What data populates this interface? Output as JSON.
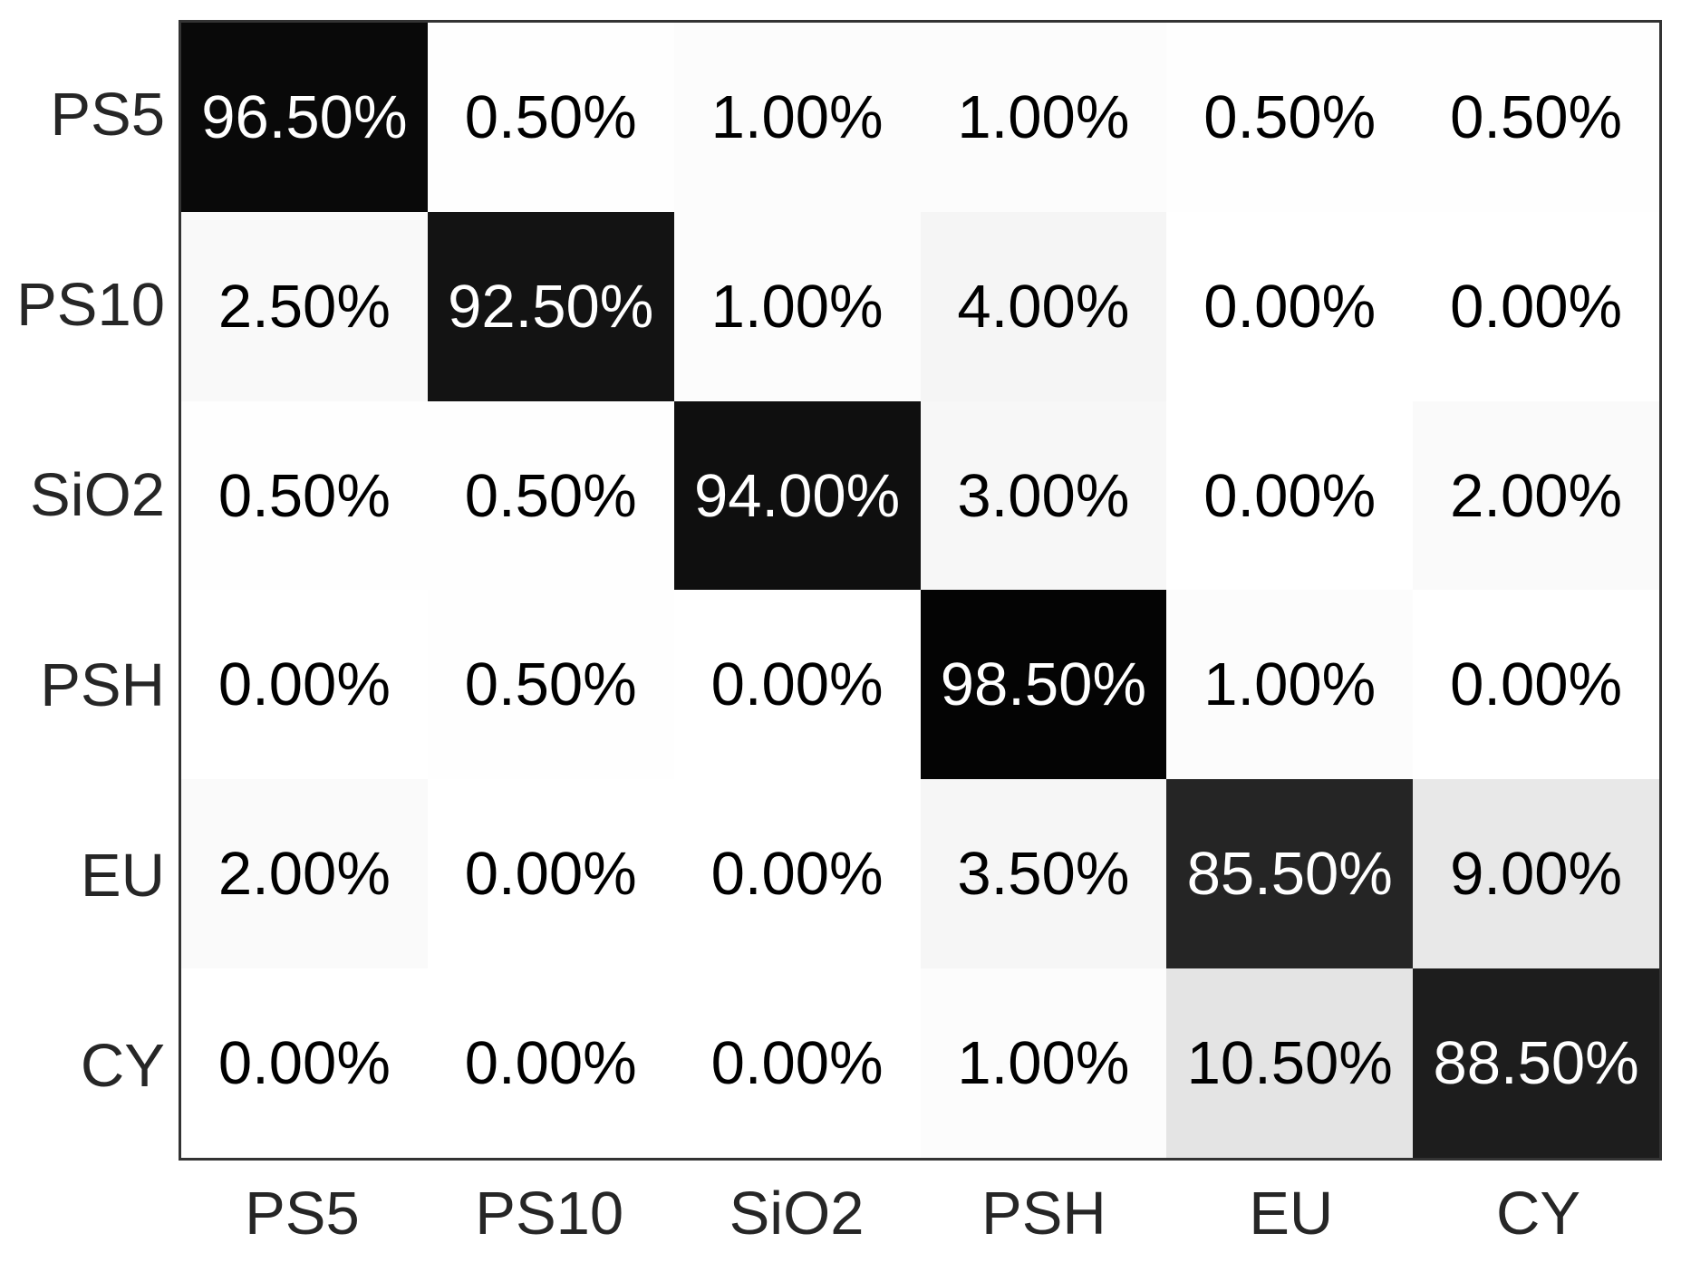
{
  "figure": {
    "background": "#ffffff",
    "frame_color": "#333333",
    "axis_label_color": "#262626"
  },
  "chart_data": {
    "type": "heatmap",
    "subtype": "confusion-matrix",
    "row_labels": [
      "PS5",
      "PS10",
      "SiO2",
      "PSH",
      "EU",
      "CY"
    ],
    "col_labels": [
      "PS5",
      "PS10",
      "SiO2",
      "PSH",
      "EU",
      "CY"
    ],
    "values": [
      [
        96.5,
        0.5,
        1.0,
        1.0,
        0.5,
        0.5
      ],
      [
        2.5,
        92.5,
        1.0,
        4.0,
        0.0,
        0.0
      ],
      [
        0.5,
        0.5,
        94.0,
        3.0,
        0.0,
        2.0
      ],
      [
        0.0,
        0.5,
        0.0,
        98.5,
        1.0,
        0.0
      ],
      [
        2.0,
        0.0,
        0.0,
        3.5,
        85.5,
        9.0
      ],
      [
        0.0,
        0.0,
        0.0,
        1.0,
        10.5,
        88.5
      ]
    ],
    "cell_labels": [
      [
        "96.50%",
        "0.50%",
        "1.00%",
        "1.00%",
        "0.50%",
        "0.50%"
      ],
      [
        "2.50%",
        "92.50%",
        "1.00%",
        "4.00%",
        "0.00%",
        "0.00%"
      ],
      [
        "0.50%",
        "0.50%",
        "94.00%",
        "3.00%",
        "0.00%",
        "2.00%"
      ],
      [
        "0.00%",
        "0.50%",
        "0.00%",
        "98.50%",
        "1.00%",
        "0.00%"
      ],
      [
        "2.00%",
        "0.00%",
        "0.00%",
        "3.50%",
        "85.50%",
        "9.00%"
      ],
      [
        "0.00%",
        "0.00%",
        "0.00%",
        "1.00%",
        "10.50%",
        "88.50%"
      ]
    ],
    "value_range": [
      0,
      100
    ],
    "value_suffix": "%",
    "decimals": 2,
    "colormap": {
      "low": "#ffffff",
      "high": "#000000"
    },
    "cell_text_color_on_dark": "#ffffff",
    "cell_text_color_on_light": "#000000",
    "grid": "off",
    "legend": "none",
    "title": ""
  }
}
